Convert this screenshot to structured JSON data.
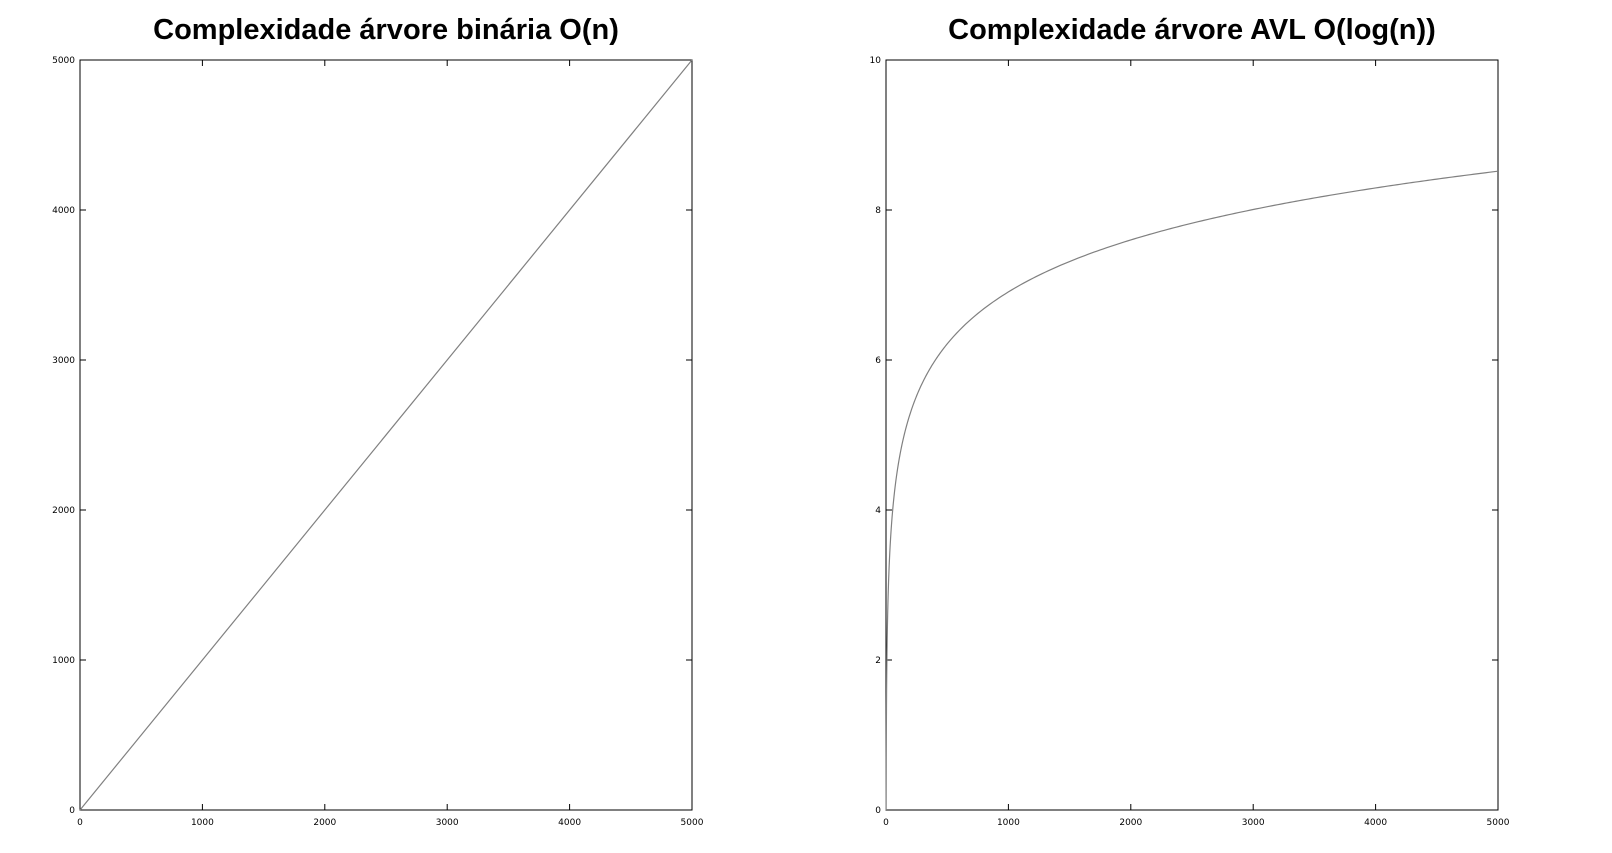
{
  "chart_data": [
    {
      "type": "line",
      "title": "Complexidade árvore binária O(n)",
      "xlabel": "",
      "ylabel": "",
      "xlim": [
        0,
        5000
      ],
      "ylim": [
        0,
        5000
      ],
      "x_ticks": [
        0,
        1000,
        2000,
        3000,
        4000,
        5000
      ],
      "y_ticks": [
        0,
        1000,
        2000,
        3000,
        4000,
        5000
      ],
      "grid": false,
      "line_color": "#808080",
      "series": [
        {
          "x": [
            0,
            5000
          ],
          "y": [
            0,
            5000
          ]
        }
      ]
    },
    {
      "type": "line",
      "title": "Complexidade árvore AVL O(log(n))",
      "xlabel": "",
      "ylabel": "",
      "xlim": [
        0,
        5000
      ],
      "ylim": [
        0,
        10
      ],
      "x_ticks": [
        0,
        1000,
        2000,
        3000,
        4000,
        5000
      ],
      "y_ticks": [
        0,
        2,
        4,
        6,
        8,
        10
      ],
      "grid": false,
      "line_color": "#808080",
      "series": [
        {
          "x": [
            1,
            2,
            5,
            10,
            20,
            30,
            50,
            75,
            100,
            150,
            200,
            300,
            400,
            500,
            750,
            1000,
            1500,
            2000,
            2500,
            3000,
            3500,
            4000,
            4500,
            5000
          ],
          "y": [
            0,
            0.69,
            1.61,
            2.3,
            3.0,
            3.4,
            3.91,
            4.32,
            4.61,
            5.01,
            5.3,
            5.7,
            5.99,
            6.21,
            6.62,
            6.91,
            7.31,
            7.6,
            7.82,
            8.01,
            8.16,
            8.29,
            8.41,
            8.52
          ]
        }
      ]
    }
  ]
}
